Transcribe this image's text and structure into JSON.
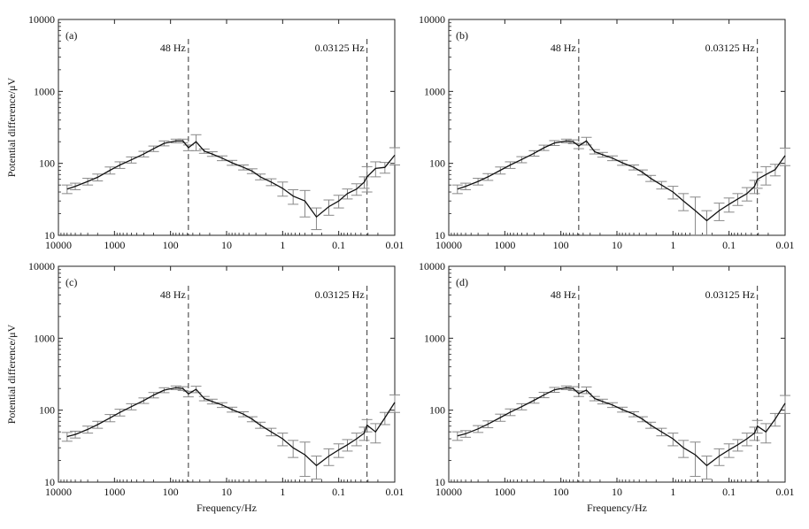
{
  "chart_data": [
    {
      "type": "line",
      "panel_label": "(a)",
      "xlabel": "",
      "ylabel": "Potential difference/μV",
      "x_scale": "log-reversed",
      "y_scale": "log",
      "xlim": [
        10000,
        0.01
      ],
      "ylim": [
        10,
        10000
      ],
      "x_ticks": [
        10000,
        1000,
        100,
        10,
        1,
        0.1,
        0.01
      ],
      "x_tick_labels": [
        "10000",
        "1000",
        "100",
        "10",
        "1",
        "0.1",
        "0.01"
      ],
      "y_ticks": [
        10,
        100,
        1000,
        10000
      ],
      "y_tick_labels": [
        "10",
        "100",
        "1000",
        "10000"
      ],
      "grid": false,
      "annotations": [
        {
          "label": "48 Hz",
          "x": 48
        },
        {
          "label": "0.03125 Hz",
          "x": 0.03125
        }
      ],
      "series": [
        {
          "x": [
            7000,
            5000,
            3000,
            2000,
            1200,
            800,
            500,
            300,
            200,
            130,
            80,
            60,
            48,
            35,
            25,
            18,
            12,
            8,
            5,
            3.5,
            2.5,
            1.6,
            1.0,
            0.65,
            0.4,
            0.25,
            0.15,
            0.1,
            0.07,
            0.048,
            0.035,
            0.03125,
            0.022,
            0.015,
            0.01
          ],
          "y": [
            44,
            48,
            56,
            64,
            80,
            95,
            112,
            135,
            160,
            190,
            205,
            205,
            165,
            200,
            148,
            135,
            118,
            102,
            88,
            78,
            65,
            55,
            45,
            35,
            30,
            18,
            25,
            30,
            38,
            44,
            55,
            65,
            85,
            88,
            130
          ],
          "err": [
            6,
            5,
            6,
            7,
            9,
            10,
            11,
            12,
            14,
            15,
            12,
            12,
            15,
            50,
            10,
            10,
            9,
            8,
            7,
            6,
            6,
            6,
            10,
            8,
            12,
            6,
            6,
            6,
            6,
            8,
            10,
            25,
            20,
            15,
            35
          ]
        }
      ]
    },
    {
      "type": "line",
      "panel_label": "(b)",
      "xlabel": "",
      "ylabel": "",
      "x_scale": "log-reversed",
      "y_scale": "log",
      "xlim": [
        10000,
        0.01
      ],
      "ylim": [
        10,
        10000
      ],
      "x_ticks": [
        10000,
        1000,
        100,
        10,
        1,
        0.1,
        0.01
      ],
      "x_tick_labels": [
        "10000",
        "1000",
        "100",
        "10",
        "1",
        "0.1",
        "0.01"
      ],
      "y_ticks": [
        10,
        100,
        1000,
        10000
      ],
      "y_tick_labels": [
        "10",
        "100",
        "1000",
        "10000"
      ],
      "grid": false,
      "annotations": [
        {
          "label": "48 Hz",
          "x": 48
        },
        {
          "label": "0.03125 Hz",
          "x": 0.03125
        }
      ],
      "series": [
        {
          "x": [
            7000,
            5000,
            3000,
            2000,
            1200,
            800,
            500,
            300,
            200,
            130,
            80,
            60,
            48,
            35,
            25,
            18,
            12,
            8,
            5,
            3.5,
            2.5,
            1.6,
            1.0,
            0.65,
            0.4,
            0.25,
            0.15,
            0.1,
            0.07,
            0.048,
            0.035,
            0.03125,
            0.022,
            0.015,
            0.01
          ],
          "y": [
            44,
            48,
            56,
            65,
            80,
            95,
            113,
            138,
            165,
            192,
            205,
            200,
            175,
            205,
            145,
            132,
            118,
            102,
            88,
            75,
            62,
            50,
            40,
            30,
            22,
            16,
            22,
            27,
            32,
            38,
            48,
            60,
            70,
            82,
            128
          ],
          "err": [
            6,
            5,
            6,
            7,
            9,
            10,
            11,
            12,
            14,
            15,
            12,
            12,
            15,
            25,
            10,
            10,
            9,
            8,
            7,
            6,
            6,
            6,
            8,
            8,
            12,
            6,
            6,
            6,
            6,
            8,
            10,
            15,
            20,
            15,
            35
          ]
        }
      ]
    },
    {
      "type": "line",
      "panel_label": "(c)",
      "xlabel": "Frequency/Hz",
      "ylabel": "Potential difference/μV",
      "x_scale": "log-reversed",
      "y_scale": "log",
      "xlim": [
        10000,
        0.01
      ],
      "ylim": [
        10,
        10000
      ],
      "x_ticks": [
        10000,
        1000,
        100,
        10,
        1,
        0.1,
        0.01
      ],
      "x_tick_labels": [
        "10000",
        "1000",
        "100",
        "10",
        "1",
        "0.1",
        "0.01"
      ],
      "y_ticks": [
        10,
        100,
        1000,
        10000
      ],
      "y_tick_labels": [
        "10",
        "100",
        "1000",
        "10000"
      ],
      "grid": false,
      "annotations": [
        {
          "label": "48 Hz",
          "x": 48
        },
        {
          "label": "0.03125 Hz",
          "x": 0.03125
        }
      ],
      "series": [
        {
          "x": [
            7000,
            5000,
            3000,
            2000,
            1200,
            800,
            500,
            300,
            200,
            130,
            80,
            60,
            48,
            35,
            25,
            18,
            12,
            8,
            5,
            3.5,
            2.5,
            1.6,
            1.0,
            0.65,
            0.4,
            0.25,
            0.15,
            0.1,
            0.07,
            0.048,
            0.035,
            0.03125,
            0.022,
            0.015,
            0.01
          ],
          "y": [
            43,
            46,
            54,
            63,
            78,
            93,
            112,
            136,
            162,
            190,
            205,
            200,
            168,
            195,
            145,
            132,
            118,
            102,
            88,
            75,
            62,
            50,
            40,
            30,
            24,
            17,
            23,
            28,
            33,
            40,
            48,
            62,
            50,
            78,
            128
          ],
          "err": [
            6,
            5,
            6,
            7,
            9,
            10,
            11,
            12,
            14,
            15,
            12,
            12,
            15,
            20,
            10,
            10,
            9,
            8,
            7,
            6,
            6,
            6,
            8,
            8,
            12,
            6,
            6,
            6,
            6,
            8,
            10,
            12,
            15,
            15,
            35
          ]
        }
      ]
    },
    {
      "type": "line",
      "panel_label": "(d)",
      "xlabel": "Frequency/Hz",
      "ylabel": "",
      "x_scale": "log-reversed",
      "y_scale": "log",
      "xlim": [
        10000,
        0.01
      ],
      "ylim": [
        10,
        10000
      ],
      "x_ticks": [
        10000,
        1000,
        100,
        10,
        1,
        0.1,
        0.01
      ],
      "x_tick_labels": [
        "10000",
        "1000",
        "100",
        "10",
        "1",
        "0.1",
        "0.01"
      ],
      "y_ticks": [
        10,
        100,
        1000,
        10000
      ],
      "y_tick_labels": [
        "10",
        "100",
        "1000",
        "10000"
      ],
      "grid": false,
      "annotations": [
        {
          "label": "48 Hz",
          "x": 48
        },
        {
          "label": "0.03125 Hz",
          "x": 0.03125
        }
      ],
      "series": [
        {
          "x": [
            7000,
            5000,
            3000,
            2000,
            1200,
            800,
            500,
            300,
            200,
            130,
            80,
            60,
            48,
            35,
            25,
            18,
            12,
            8,
            5,
            3.5,
            2.5,
            1.6,
            1.0,
            0.65,
            0.4,
            0.25,
            0.15,
            0.1,
            0.07,
            0.048,
            0.035,
            0.03125,
            0.022,
            0.015,
            0.01
          ],
          "y": [
            44,
            47,
            55,
            64,
            79,
            94,
            112,
            137,
            163,
            192,
            205,
            200,
            170,
            190,
            145,
            132,
            118,
            102,
            88,
            75,
            62,
            50,
            40,
            30,
            24,
            17,
            23,
            28,
            33,
            40,
            48,
            60,
            50,
            75,
            125
          ],
          "err": [
            6,
            5,
            6,
            7,
            9,
            10,
            11,
            12,
            14,
            15,
            12,
            12,
            15,
            20,
            10,
            10,
            9,
            8,
            7,
            6,
            6,
            6,
            8,
            8,
            12,
            6,
            6,
            6,
            6,
            8,
            10,
            12,
            15,
            15,
            35
          ]
        }
      ]
    }
  ]
}
